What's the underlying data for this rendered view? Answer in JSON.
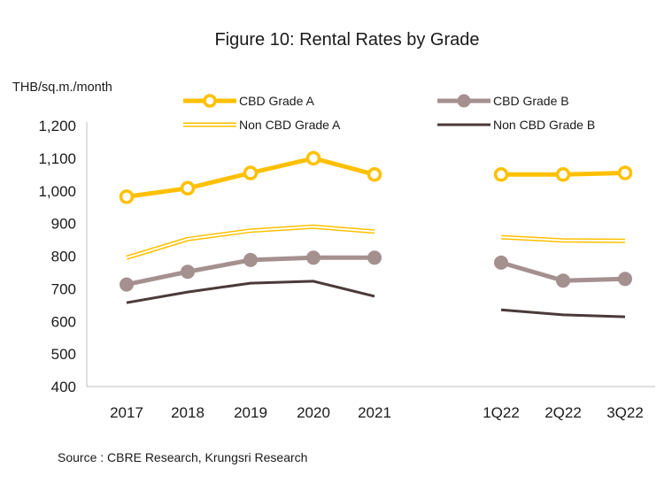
{
  "chart_data": {
    "type": "line",
    "title": "Figure 10: Rental Rates by Grade",
    "ylabel": "THB/sq.m./month",
    "xlabel": "",
    "ylim": [
      400,
      1200
    ],
    "yticks": [
      400,
      500,
      600,
      700,
      800,
      900,
      1000,
      1100,
      1200
    ],
    "ytick_labels": [
      "400",
      "500",
      "600",
      "700",
      "800",
      "900",
      "1,000",
      "1,100",
      "1,200"
    ],
    "categories": [
      "2017",
      "2018",
      "2019",
      "2020",
      "2021",
      "1Q22",
      "2Q22",
      "3Q22"
    ],
    "segments": [
      [
        "2017",
        "2018",
        "2019",
        "2020",
        "2021"
      ],
      [
        "1Q22",
        "2Q22",
        "3Q22"
      ]
    ],
    "grid": false,
    "legend_position": "top",
    "series": [
      {
        "name": "CBD Grade A",
        "color": "#FFC000",
        "style": "thick-line-hollow-markers",
        "values": [
          982,
          1008,
          1055,
          1100,
          1050,
          1050,
          1050,
          1055
        ]
      },
      {
        "name": "CBD Grade B",
        "color": "#A59090",
        "style": "thick-line-filled-markers",
        "values": [
          713,
          752,
          788,
          795,
          795,
          780,
          725,
          730
        ]
      },
      {
        "name": "Non CBD Grade A",
        "color": "#FFC000",
        "style": "double-line",
        "values": [
          795,
          852,
          878,
          890,
          875,
          858,
          848,
          847
        ]
      },
      {
        "name": "Non CBD Grade B",
        "color": "#4A3A38",
        "style": "thin-line",
        "values": [
          657,
          690,
          717,
          723,
          677,
          635,
          620,
          614
        ]
      }
    ],
    "source": "Source : CBRE Research, Krungsri Research"
  }
}
